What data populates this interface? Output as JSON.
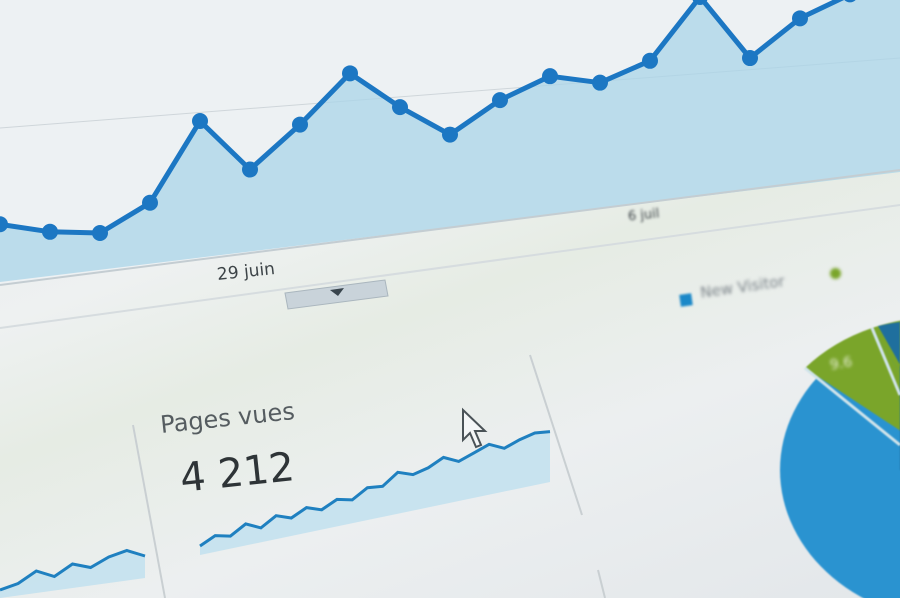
{
  "main_chart": {
    "type": "area",
    "x_labels": [
      "29 juin",
      "6 juil"
    ],
    "values": [
      55,
      42,
      35,
      58,
      130,
      78,
      115,
      158,
      120,
      88,
      115,
      132,
      120,
      135,
      190,
      126,
      158,
      175,
      196
    ],
    "line_color": "#1c77c3",
    "fill_color": "#a9d4e8"
  },
  "widget": {
    "label": "Pages vues",
    "value": "4 212",
    "sparkline": [
      10,
      18,
      14,
      24,
      16,
      26,
      20,
      28,
      22,
      30,
      26,
      36,
      34,
      46,
      40,
      44,
      52,
      44,
      50,
      56,
      48,
      54,
      58,
      56
    ]
  },
  "left_sparkline": [
    8,
    12,
    22,
    14,
    24,
    18,
    26,
    30,
    22
  ],
  "legend": {
    "items": [
      {
        "label": "New Visitor",
        "color": "#1b88c8"
      },
      {
        "label": "",
        "color": "#7aa52a"
      }
    ]
  },
  "pie": {
    "colors": [
      "#2a93d0",
      "#7aa52a",
      "#1f6f9e"
    ],
    "label": "9.6"
  },
  "cursor_icon": "arrow-pointer-icon",
  "collapse_icon": "caret-down-icon"
}
